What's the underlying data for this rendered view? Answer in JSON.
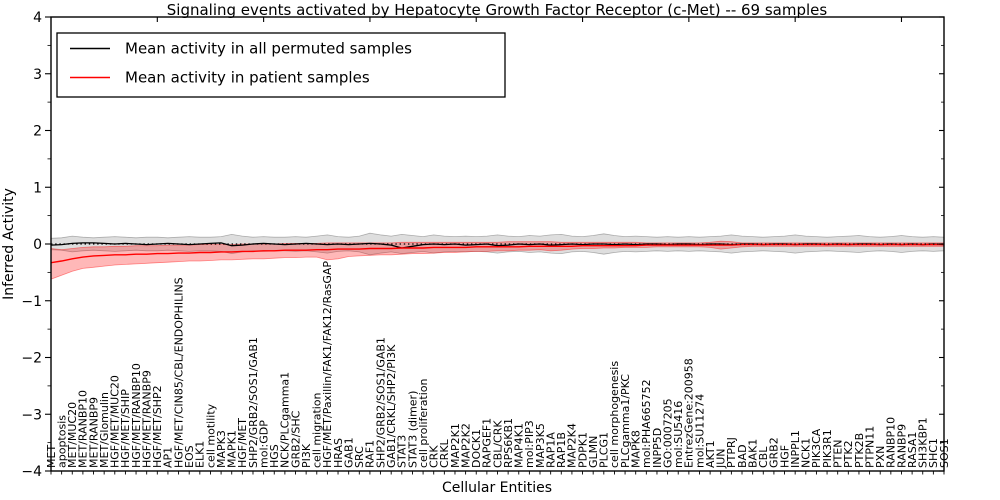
{
  "chart_data": {
    "type": "line",
    "title": "Signaling events activated by Hepatocyte Growth Factor Receptor (c-Met) -- 69 samples",
    "xlabel": "Cellular Entities",
    "ylabel": "Inferred Activity",
    "ylim": [
      -4,
      4
    ],
    "yticks": [
      -4,
      -3,
      -2,
      -1,
      0,
      1,
      2,
      3,
      4
    ],
    "x_top_tick_every": 10,
    "grid": false,
    "legend_position": "upper left",
    "zero_line": {
      "style": "dotted",
      "color": "#000000",
      "y": 0
    },
    "categories": [
      "MET",
      "apoptosis",
      "MET/MUC20",
      "MET/RANBP10",
      "MET/RANBP9",
      "MET/Glomulin",
      "HGF/MET/MUC20",
      "HGF/MET/SHIP",
      "HGF/MET/RANBP10",
      "HGF/MET/RANBP9",
      "HGF/MET/SHP2",
      "AP1",
      "HGF/MET/CIN85/CBL/ENDOPHILINS",
      "EOS",
      "ELK1",
      "cell motility",
      "MAPK3",
      "MAPK1",
      "HGF/MET",
      "SHP2/GRB2/SOS1/GAB1",
      "mol:GDP",
      "HGS",
      "NCK/PLCgamma1",
      "GRB2/SHC",
      "PI3K",
      "cell migration",
      "HGF/MET/Paxillin/FAK1/FAK12/RasGAP",
      "HRAS",
      "GAB1",
      "SRC",
      "RAF1",
      "SHP2/GRB2/SOS1/GAB1",
      "GAB1/CRKL/SHP2/PI3K",
      "STAT3",
      "STAT3 (dimer)",
      "cell proliferation",
      "CRK",
      "CRKL",
      "MAP2K1",
      "MAP2K2",
      "DOCK1",
      "RAPGEF1",
      "CBL/CRK",
      "RPS6KB1",
      "MAP4K1",
      "mol:PIP3",
      "MAP3K5",
      "RAP1A",
      "RAP1B",
      "MAP2K4",
      "PDPK1",
      "GLMN",
      "PLCG1",
      "cell morphogenesis",
      "PLCgamma1/PKC",
      "MAPK8",
      "mol:PHA665752",
      "INPP5D",
      "GO:0007205",
      "mol:SU5416",
      "EntrezGene:200958",
      "mol:SU11274",
      "AKT1",
      "JUN",
      "PTPRJ",
      "BAD",
      "BAK1",
      "CBL",
      "GRB2",
      "HGF",
      "INPPL1",
      "NCK1",
      "PIK3CA",
      "PIK3R1",
      "PTEN",
      "PTK2",
      "PTK2B",
      "PTPN11",
      "PXN",
      "RANBP10",
      "RANBP9",
      "RASA1",
      "SH3KBP1",
      "SHC1",
      "SOS1"
    ],
    "series": [
      {
        "label": "Mean activity in all permuted samples",
        "color": "#000000",
        "values": [
          -0.02,
          -0.01,
          0.01,
          0.02,
          0.02,
          0.01,
          0.0,
          0.01,
          0.0,
          -0.01,
          0.0,
          0.01,
          0.0,
          -0.01,
          0.0,
          0.01,
          0.02,
          -0.03,
          -0.02,
          0.0,
          0.01,
          0.0,
          -0.01,
          0.0,
          0.01,
          0.0,
          -0.01,
          0.0,
          -0.01,
          0.0,
          0.01,
          0.0,
          -0.02,
          -0.07,
          -0.04,
          -0.01,
          0.0,
          -0.01,
          0.0,
          -0.02,
          -0.01,
          0.0,
          -0.03,
          -0.02,
          0.0,
          -0.01,
          0.0,
          -0.02,
          -0.01,
          0.0,
          -0.01,
          0.0,
          0.0,
          -0.01,
          0.0,
          -0.01,
          0.0,
          0.0,
          -0.01,
          0.0,
          0.0,
          -0.01,
          0.0,
          0.0,
          -0.01,
          0.0,
          0.0,
          -0.01,
          0.0,
          0.0,
          -0.01,
          0.0,
          0.0,
          -0.01,
          0.0,
          -0.01,
          0.0,
          0.0,
          -0.01,
          0.0,
          -0.01,
          0.0,
          -0.01,
          0.0,
          -0.01
        ]
      },
      {
        "label": "Mean activity in patient samples",
        "color": "#ff0000",
        "values": [
          -0.33,
          -0.3,
          -0.26,
          -0.23,
          -0.21,
          -0.2,
          -0.19,
          -0.19,
          -0.18,
          -0.18,
          -0.17,
          -0.17,
          -0.16,
          -0.16,
          -0.15,
          -0.15,
          -0.14,
          -0.14,
          -0.13,
          -0.13,
          -0.12,
          -0.12,
          -0.11,
          -0.11,
          -0.11,
          -0.1,
          -0.1,
          -0.09,
          -0.09,
          -0.09,
          -0.08,
          -0.08,
          -0.08,
          -0.07,
          -0.07,
          -0.07,
          -0.06,
          -0.06,
          -0.06,
          -0.06,
          -0.05,
          -0.05,
          -0.05,
          -0.05,
          -0.05,
          -0.04,
          -0.04,
          -0.04,
          -0.04,
          -0.04,
          -0.03,
          -0.03,
          -0.03,
          -0.03,
          -0.03,
          -0.03,
          -0.02,
          -0.02,
          -0.02,
          -0.02,
          -0.02,
          -0.02,
          -0.02,
          -0.02,
          -0.02,
          -0.01,
          -0.01,
          -0.01,
          -0.01,
          -0.01,
          -0.01,
          -0.01,
          -0.01,
          -0.01,
          -0.01,
          -0.01,
          -0.01,
          -0.01,
          -0.01,
          -0.01,
          -0.01,
          -0.01,
          -0.01,
          -0.01,
          -0.01
        ]
      }
    ],
    "bands": [
      {
        "name": "permuted samples range",
        "color": "#000000",
        "opacity": 0.13,
        "upper": [
          0.1,
          0.11,
          0.14,
          0.12,
          0.11,
          0.12,
          0.13,
          0.12,
          0.11,
          0.12,
          0.12,
          0.11,
          0.12,
          0.13,
          0.12,
          0.12,
          0.13,
          0.17,
          0.14,
          0.12,
          0.13,
          0.12,
          0.12,
          0.13,
          0.12,
          0.14,
          0.16,
          0.13,
          0.12,
          0.14,
          0.19,
          0.16,
          0.14,
          0.17,
          0.15,
          0.13,
          0.16,
          0.14,
          0.13,
          0.14,
          0.13,
          0.14,
          0.16,
          0.14,
          0.13,
          0.15,
          0.14,
          0.16,
          0.17,
          0.14,
          0.13,
          0.15,
          0.18,
          0.15,
          0.13,
          0.14,
          0.13,
          0.12,
          0.13,
          0.12,
          0.13,
          0.12,
          0.13,
          0.14,
          0.16,
          0.14,
          0.13,
          0.12,
          0.13,
          0.14,
          0.16,
          0.14,
          0.13,
          0.12,
          0.13,
          0.14,
          0.15,
          0.13,
          0.12,
          0.13,
          0.15,
          0.13,
          0.12,
          0.13,
          0.12
        ],
        "lower": [
          -0.1,
          -0.11,
          -0.14,
          -0.12,
          -0.11,
          -0.12,
          -0.13,
          -0.12,
          -0.11,
          -0.12,
          -0.12,
          -0.11,
          -0.12,
          -0.13,
          -0.12,
          -0.12,
          -0.13,
          -0.17,
          -0.14,
          -0.12,
          -0.13,
          -0.12,
          -0.12,
          -0.13,
          -0.12,
          -0.14,
          -0.16,
          -0.13,
          -0.12,
          -0.14,
          -0.19,
          -0.16,
          -0.14,
          -0.17,
          -0.15,
          -0.13,
          -0.16,
          -0.14,
          -0.13,
          -0.14,
          -0.13,
          -0.14,
          -0.16,
          -0.14,
          -0.13,
          -0.15,
          -0.14,
          -0.16,
          -0.17,
          -0.14,
          -0.13,
          -0.15,
          -0.18,
          -0.15,
          -0.13,
          -0.14,
          -0.13,
          -0.12,
          -0.13,
          -0.12,
          -0.13,
          -0.12,
          -0.13,
          -0.14,
          -0.16,
          -0.14,
          -0.13,
          -0.12,
          -0.13,
          -0.14,
          -0.16,
          -0.14,
          -0.13,
          -0.12,
          -0.13,
          -0.14,
          -0.15,
          -0.13,
          -0.12,
          -0.13,
          -0.15,
          -0.13,
          -0.12,
          -0.13,
          -0.12
        ]
      },
      {
        "name": "patient samples range",
        "color": "#ff0000",
        "opacity": 0.28,
        "upper": [
          -0.08,
          -0.1,
          -0.08,
          -0.06,
          -0.05,
          -0.05,
          -0.04,
          -0.04,
          -0.03,
          -0.03,
          -0.03,
          -0.02,
          -0.02,
          -0.02,
          -0.01,
          -0.01,
          -0.01,
          -0.01,
          0.0,
          0.0,
          0.0,
          0.0,
          0.01,
          0.01,
          0.01,
          0.01,
          0.02,
          0.02,
          0.02,
          0.02,
          0.02,
          0.02,
          0.02,
          0.03,
          0.03,
          0.03,
          0.03,
          0.03,
          0.03,
          0.03,
          0.03,
          0.03,
          0.03,
          0.04,
          0.04,
          0.04,
          0.04,
          0.04,
          0.03,
          0.03,
          0.03,
          0.03,
          0.03,
          0.03,
          0.03,
          0.03,
          0.02,
          0.02,
          0.02,
          0.02,
          0.02,
          0.02,
          0.03,
          0.05,
          0.04,
          0.02,
          0.02,
          0.02,
          0.02,
          0.02,
          0.02,
          0.02,
          0.02,
          0.02,
          0.02,
          0.02,
          0.02,
          0.02,
          0.02,
          0.02,
          0.02,
          0.02,
          0.02,
          0.02,
          0.02
        ],
        "lower": [
          -0.62,
          -0.55,
          -0.48,
          -0.43,
          -0.41,
          -0.39,
          -0.37,
          -0.36,
          -0.35,
          -0.34,
          -0.33,
          -0.32,
          -0.31,
          -0.3,
          -0.3,
          -0.29,
          -0.28,
          -0.28,
          -0.27,
          -0.26,
          -0.26,
          -0.25,
          -0.24,
          -0.24,
          -0.23,
          -0.23,
          -0.28,
          -0.26,
          -0.22,
          -0.21,
          -0.2,
          -0.19,
          -0.19,
          -0.18,
          -0.17,
          -0.17,
          -0.16,
          -0.15,
          -0.15,
          -0.14,
          -0.13,
          -0.13,
          -0.12,
          -0.12,
          -0.11,
          -0.11,
          -0.1,
          -0.12,
          -0.11,
          -0.09,
          -0.08,
          -0.08,
          -0.07,
          -0.07,
          -0.06,
          -0.06,
          -0.06,
          -0.05,
          -0.05,
          -0.05,
          -0.05,
          -0.05,
          -0.06,
          -0.09,
          -0.07,
          -0.05,
          -0.04,
          -0.04,
          -0.04,
          -0.04,
          -0.04,
          -0.04,
          -0.04,
          -0.04,
          -0.04,
          -0.04,
          -0.04,
          -0.04,
          -0.04,
          -0.04,
          -0.04,
          -0.04,
          -0.04,
          -0.04,
          -0.04
        ]
      }
    ]
  }
}
